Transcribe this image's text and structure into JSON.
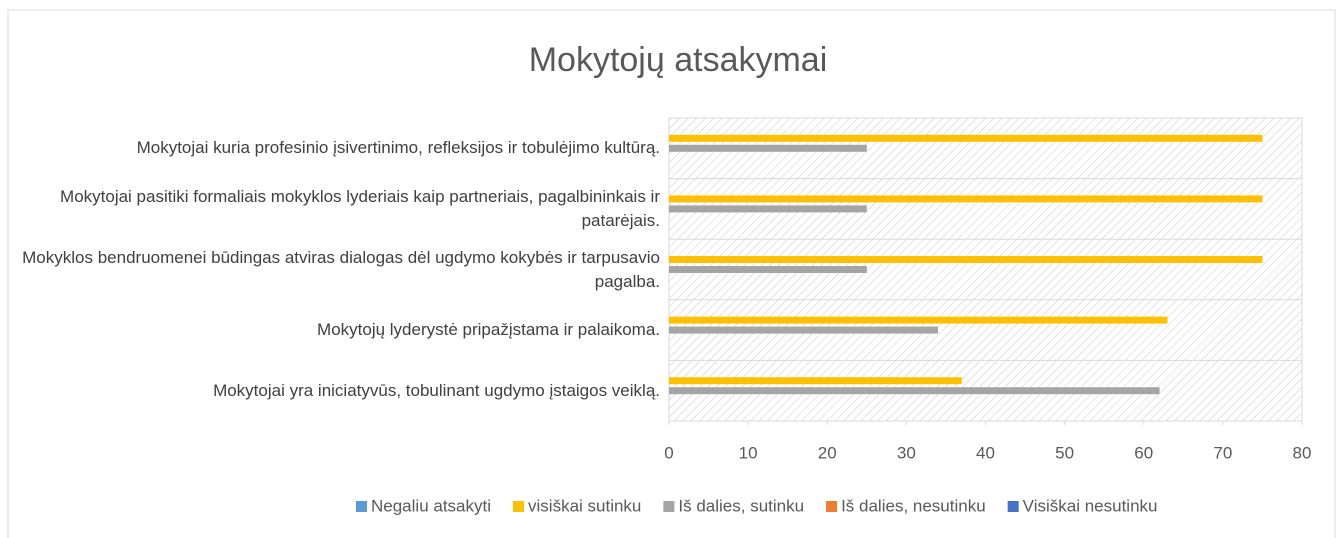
{
  "chart_data": {
    "type": "hbar",
    "title": "Mokytojų atsakymai",
    "categories": [
      "Mokytojai kuria profesinio įsivertinimo, refleksijos ir tobulėjimo kultūrą.",
      "Mokytojai pasitiki formaliais mokyklos lyderiais kaip partneriais, pagalbininkais ir patarėjais.",
      "Mokyklos bendruomenei būdingas atviras dialogas dėl ugdymo kokybės ir tarpusavio pagalba.",
      "Mokytojų lyderystė pripažįstama ir palaikoma.",
      "Mokytojai yra iniciatyvūs, tobulinant ugdymo įstaigos veiklą."
    ],
    "series": [
      {
        "name": "Negaliu atsakyti",
        "color": "#5b9bd5",
        "values": [
          0,
          0,
          0,
          0,
          0
        ]
      },
      {
        "name": "visiškai sutinku",
        "color": "#ffc000",
        "values": [
          75,
          75,
          75,
          63,
          37
        ]
      },
      {
        "name": "Iš dalies, sutinku",
        "color": "#a5a5a5",
        "values": [
          25,
          25,
          25,
          34,
          62
        ]
      },
      {
        "name": "Iš dalies, nesutinku",
        "color": "#ed7d31",
        "values": [
          0,
          0,
          0,
          0,
          0
        ]
      },
      {
        "name": "Visiškai nesutinku",
        "color": "#4472c4",
        "values": [
          0,
          0,
          0,
          0,
          0
        ]
      }
    ],
    "xlim": [
      0,
      80
    ],
    "xticks": [
      0,
      10,
      20,
      30,
      40,
      50,
      60,
      70,
      80
    ]
  }
}
